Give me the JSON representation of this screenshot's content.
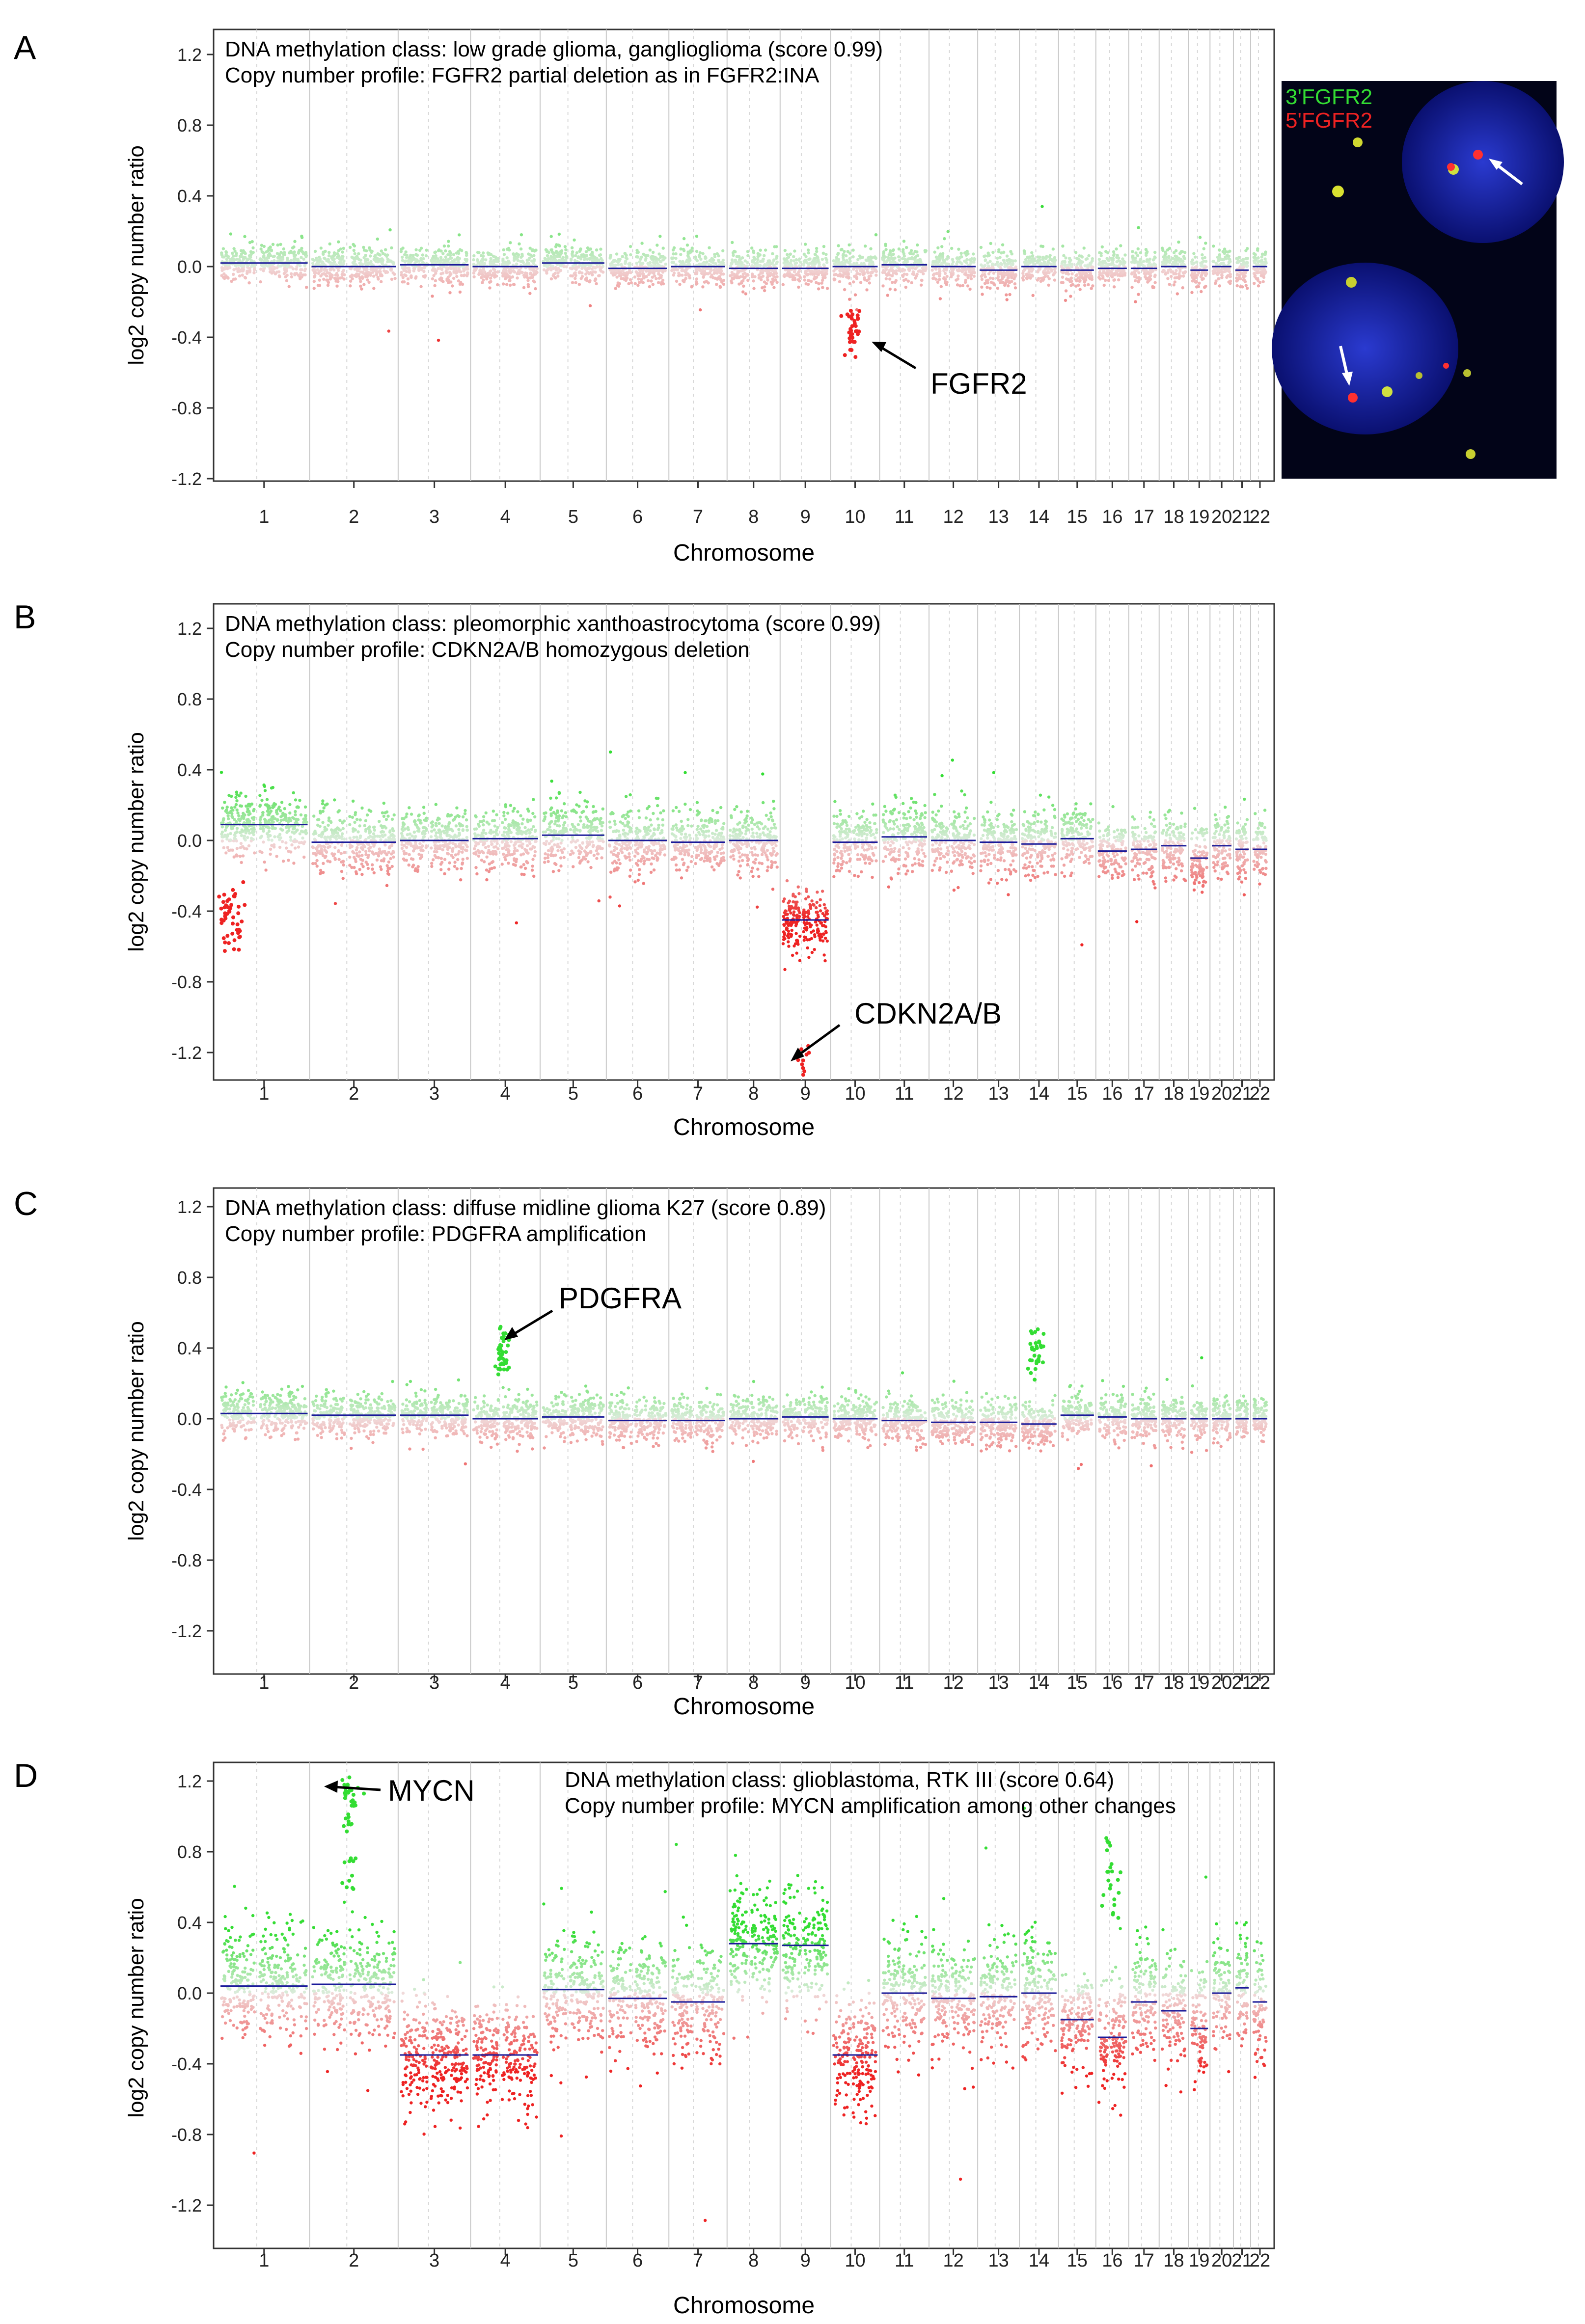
{
  "figure": {
    "panels": [
      "A",
      "B",
      "C",
      "D"
    ]
  },
  "chart_data": [
    {
      "panel": "A",
      "type": "scatter",
      "title": "DNA methylation class: low grade glioma, ganglioglioma (score 0.99)",
      "subtitle": "Copy number profile: FGFR2 partial deletion as in FGFR2:INA",
      "xlabel": "Chromosome",
      "ylabel": "log2 copy number ratio",
      "ylim": [
        -1.3,
        1.3
      ],
      "yticks": [
        1.2,
        0.8,
        0.4,
        0.0,
        -0.4,
        -0.8,
        -1.2
      ],
      "ytick_labels": [
        "1.2",
        "0.8",
        "0.4",
        "0.0",
        "-0.4",
        "-0.8",
        "-1.2"
      ],
      "categories": [
        "1",
        "2",
        "3",
        "4",
        "5",
        "6",
        "7",
        "8",
        "9",
        "10",
        "11",
        "12",
        "13",
        "14",
        "15",
        "16",
        "17",
        "18",
        "19",
        "20",
        "21",
        "22"
      ],
      "grid": "chromosome boundaries",
      "noise": 0.05,
      "segments": [
        0.02,
        0.0,
        0.01,
        0.0,
        0.02,
        -0.01,
        0.0,
        -0.01,
        -0.01,
        0.0,
        0.01,
        0.0,
        -0.02,
        0.0,
        -0.02,
        -0.01,
        -0.01,
        0.0,
        -0.02,
        0.0,
        -0.02,
        0.0
      ],
      "features": [
        {
          "chromosome": "10",
          "values": [
            -0.25,
            -0.3,
            -0.35,
            -0.38,
            -0.42,
            -0.44
          ]
        }
      ],
      "annotations": [
        {
          "label": "FGFR2",
          "x_chr": "10",
          "y": -0.42
        }
      ],
      "colors": {
        "gain": "#33dd33",
        "loss": "#ee2222",
        "segment": "#1a1a99"
      },
      "inset": {
        "type": "image",
        "labels": [
          "3'FGFR2",
          "5'FGFR2"
        ],
        "label_colors": [
          "#33dd33",
          "#ee2222"
        ]
      }
    },
    {
      "panel": "B",
      "type": "scatter",
      "title": "DNA methylation class: pleomorphic xanthoastrocytoma (score 0.99)",
      "subtitle": "Copy number profile: CDKN2A/B homozygous deletion",
      "xlabel": "Chromosome",
      "ylabel": "log2 copy number ratio",
      "ylim": [
        -1.3,
        1.3
      ],
      "yticks": [
        1.2,
        0.8,
        0.4,
        0.0,
        -0.4,
        -0.8,
        -1.2
      ],
      "ytick_labels": [
        "1.2",
        "0.8",
        "0.4",
        "0.0",
        "-0.4",
        "-0.8",
        "-1.2"
      ],
      "categories": [
        "1",
        "2",
        "3",
        "4",
        "5",
        "6",
        "7",
        "8",
        "9",
        "10",
        "11",
        "12",
        "13",
        "14",
        "15",
        "16",
        "17",
        "18",
        "19",
        "20",
        "21",
        "22"
      ],
      "grid": "chromosome boundaries",
      "noise": 0.09,
      "segments": [
        0.09,
        -0.01,
        0.0,
        0.01,
        0.03,
        0.0,
        -0.01,
        0.0,
        -0.45,
        -0.01,
        0.02,
        0.0,
        -0.01,
        -0.02,
        0.01,
        -0.06,
        -0.05,
        -0.03,
        -0.1,
        -0.03,
        -0.05,
        -0.05
      ],
      "features": [
        {
          "chromosome": "1p",
          "values": [
            -0.4,
            -0.45,
            -0.5,
            -0.55,
            -0.35,
            -0.6,
            -0.3,
            -0.42
          ]
        },
        {
          "chromosome": "9",
          "values": [
            -1.24,
            -1.25
          ]
        }
      ],
      "annotations": [
        {
          "label": "CDKN2A/B",
          "x_chr": "9",
          "y": -1.24
        }
      ],
      "colors": {
        "gain": "#33dd33",
        "loss": "#ee2222",
        "segment": "#1a1a99"
      }
    },
    {
      "panel": "C",
      "type": "scatter",
      "title": "DNA methylation class: diffuse midline glioma K27 (score 0.89)",
      "subtitle": "Copy number profile: PDGFRA amplification",
      "xlabel": "Chromosome",
      "ylabel": "log2 copy number ratio",
      "ylim": [
        -1.3,
        1.3
      ],
      "yticks": [
        1.2,
        0.8,
        0.4,
        0.0,
        -0.4,
        -0.8,
        -1.2
      ],
      "ytick_labels": [
        "1.2",
        "0.8",
        "0.4",
        "0.0",
        "-0.4",
        "-0.8",
        "-1.2"
      ],
      "categories": [
        "1",
        "2",
        "3",
        "4",
        "5",
        "6",
        "7",
        "8",
        "9",
        "10",
        "11",
        "12",
        "13",
        "14",
        "15",
        "16",
        "17",
        "18",
        "19",
        "20",
        "21",
        "22"
      ],
      "grid": "chromosome boundaries",
      "noise": 0.06,
      "segments": [
        0.03,
        0.02,
        0.02,
        0.0,
        0.01,
        -0.01,
        -0.01,
        0.0,
        0.01,
        0.0,
        -0.01,
        -0.02,
        -0.02,
        -0.03,
        0.02,
        0.01,
        0.0,
        0.0,
        0.0,
        0.0,
        0.0,
        0.0
      ],
      "features": [
        {
          "chromosome": "4",
          "values": [
            0.3,
            0.35,
            0.4,
            0.45,
            0.5,
            0.28,
            0.38
          ]
        },
        {
          "chromosome": "14",
          "values": [
            0.35,
            0.4,
            0.47,
            0.42,
            0.3
          ]
        }
      ],
      "annotations": [
        {
          "label": "PDGFRA",
          "x_chr": "4",
          "y": 0.46
        }
      ],
      "colors": {
        "gain": "#33dd33",
        "loss": "#ee2222",
        "segment": "#1a1a99"
      }
    },
    {
      "panel": "D",
      "type": "scatter",
      "title": "DNA methylation class: glioblastoma, RTK III (score 0.64)",
      "subtitle": "Copy number profile: MYCN amplification among other changes",
      "xlabel": "Chromosome",
      "ylabel": "log2 copy number ratio",
      "ylim": [
        -1.3,
        1.3
      ],
      "yticks": [
        1.2,
        0.8,
        0.4,
        0.0,
        -0.4,
        -0.8,
        -1.2
      ],
      "ytick_labels": [
        "1.2",
        "0.8",
        "0.4",
        "0.0",
        "-0.4",
        "-0.8",
        "-1.2"
      ],
      "categories": [
        "1",
        "2",
        "3",
        "4",
        "5",
        "6",
        "7",
        "8",
        "9",
        "10",
        "11",
        "12",
        "13",
        "14",
        "15",
        "16",
        "17",
        "18",
        "19",
        "20",
        "21",
        "22"
      ],
      "grid": "chromosome boundaries",
      "noise": 0.16,
      "segments": [
        0.04,
        0.05,
        -0.35,
        -0.35,
        0.02,
        -0.03,
        -0.05,
        0.28,
        0.27,
        -0.35,
        0.0,
        -0.03,
        -0.02,
        0.0,
        -0.15,
        -0.25,
        -0.05,
        -0.1,
        -0.2,
        0.0,
        0.03,
        -0.05
      ],
      "features": [
        {
          "chromosome": "2",
          "values": [
            1.1,
            1.15,
            1.18,
            1.12,
            0.95,
            0.75,
            0.6,
            1.05
          ]
        },
        {
          "chromosome": "16",
          "values": [
            0.7,
            0.85,
            0.6,
            0.5
          ]
        }
      ],
      "annotations": [
        {
          "label": "MYCN",
          "x_chr": "2",
          "y": 1.14
        }
      ],
      "colors": {
        "gain": "#33dd33",
        "loss": "#ee2222",
        "segment": "#1a1a99"
      }
    }
  ]
}
